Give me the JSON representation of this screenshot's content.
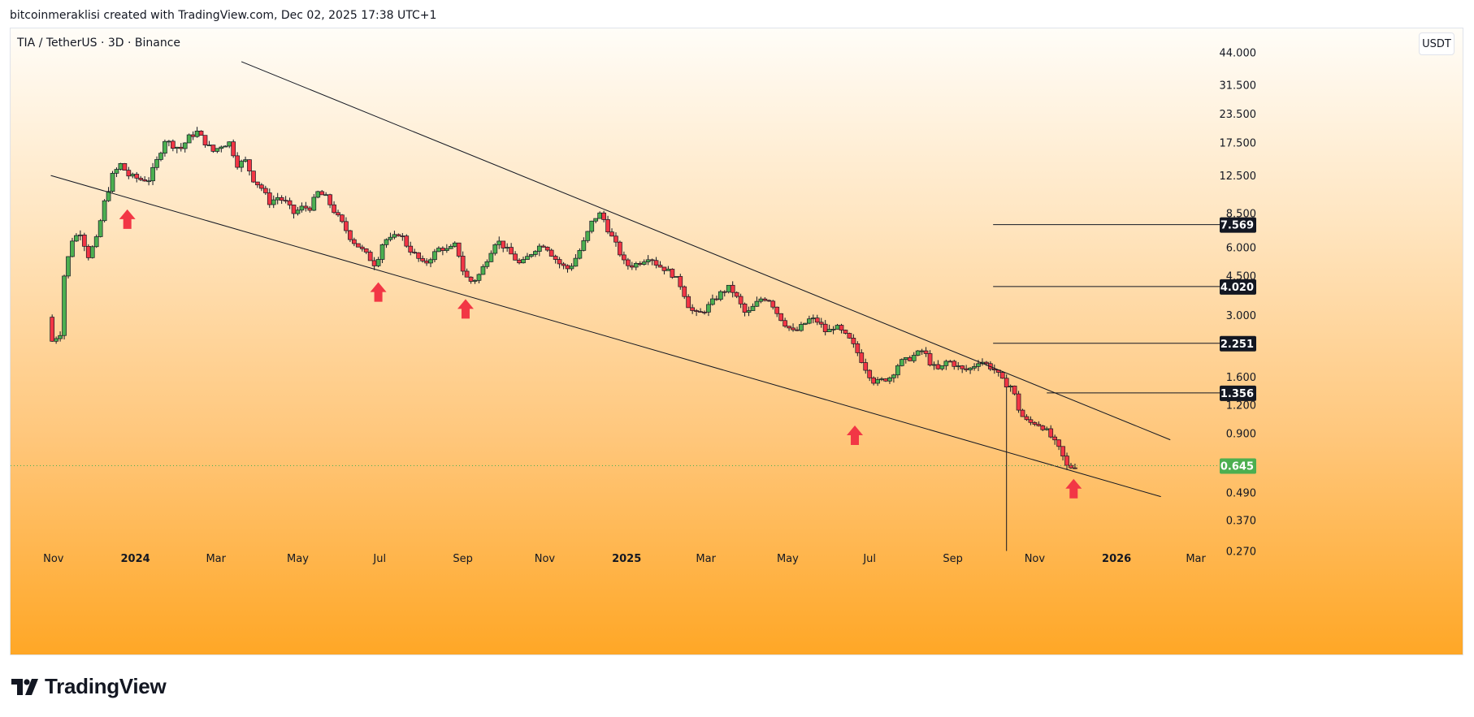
{
  "header": {
    "attribution": "bitcoinmeraklisi created with TradingView.com, Dec 02, 2025 17:38 UTC+1"
  },
  "chart": {
    "symbol_title": "TIA / TetherUS · 3D · Binance",
    "currency_button": "USDT"
  },
  "footer": {
    "brand": "TradingView"
  },
  "colors": {
    "up": "#26a69a",
    "down": "#ef5350",
    "up_body": "#4caf50",
    "down_body": "#f23645",
    "arrow": "#f23645",
    "last_price_bg": "#4caf50",
    "level_bg": "#131722",
    "gradient_top": "#fffdf8",
    "gradient_bottom": "#ffa726"
  },
  "chart_data": {
    "type": "candlestick",
    "title": "TIA / TetherUS · 3D · Binance",
    "scale": "log",
    "ylim": [
      0.26,
      50
    ],
    "xlim": [
      "2023-10-20",
      "2026-03-20"
    ],
    "y_ticks": [
      "44.000",
      "31.500",
      "23.500",
      "17.500",
      "12.500",
      "8.500",
      "6.000",
      "4.500",
      "3.000",
      "1.600",
      "1.200",
      "0.900",
      "0.490",
      "0.370",
      "0.270"
    ],
    "x_ticks": [
      {
        "label": "Nov",
        "date": "2023-11-01",
        "bold": false
      },
      {
        "label": "2024",
        "date": "2024-01-01",
        "bold": true
      },
      {
        "label": "Mar",
        "date": "2024-03-01",
        "bold": false
      },
      {
        "label": "May",
        "date": "2024-05-01",
        "bold": false
      },
      {
        "label": "Jul",
        "date": "2024-07-01",
        "bold": false
      },
      {
        "label": "Sep",
        "date": "2024-09-01",
        "bold": false
      },
      {
        "label": "Nov",
        "date": "2024-11-01",
        "bold": false
      },
      {
        "label": "2025",
        "date": "2025-01-01",
        "bold": true
      },
      {
        "label": "Mar",
        "date": "2025-03-01",
        "bold": false
      },
      {
        "label": "May",
        "date": "2025-05-01",
        "bold": false
      },
      {
        "label": "Jul",
        "date": "2025-07-01",
        "bold": false
      },
      {
        "label": "Sep",
        "date": "2025-09-01",
        "bold": false
      },
      {
        "label": "Nov",
        "date": "2025-11-01",
        "bold": false
      },
      {
        "label": "2026",
        "date": "2026-01-01",
        "bold": true
      },
      {
        "label": "Mar",
        "date": "2026-03-01",
        "bold": false
      }
    ],
    "price_path": [
      [
        "2023-10-31",
        2.8
      ],
      [
        "2023-11-03",
        2.3
      ],
      [
        "2023-11-09",
        2.5
      ],
      [
        "2023-11-12",
        4.5
      ],
      [
        "2023-11-18",
        6.5
      ],
      [
        "2023-11-24",
        7.0
      ],
      [
        "2023-11-30",
        5.5
      ],
      [
        "2023-12-06",
        6.5
      ],
      [
        "2023-12-12",
        9.5
      ],
      [
        "2023-12-18",
        12.5
      ],
      [
        "2023-12-24",
        14.0
      ],
      [
        "2023-12-30",
        12.5
      ],
      [
        "2024-01-08",
        12.0
      ],
      [
        "2024-01-14",
        12.0
      ],
      [
        "2024-01-20",
        14.5
      ],
      [
        "2024-01-26",
        18.0
      ],
      [
        "2024-02-01",
        17.0
      ],
      [
        "2024-02-07",
        16.5
      ],
      [
        "2024-02-13",
        18.5
      ],
      [
        "2024-02-19",
        19.5
      ],
      [
        "2024-02-25",
        17.5
      ],
      [
        "2024-03-02",
        16.0
      ],
      [
        "2024-03-08",
        17.0
      ],
      [
        "2024-03-14",
        17.5
      ],
      [
        "2024-03-20",
        14.0
      ],
      [
        "2024-03-26",
        14.5
      ],
      [
        "2024-04-01",
        12.0
      ],
      [
        "2024-04-07",
        11.0
      ],
      [
        "2024-04-13",
        9.5
      ],
      [
        "2024-04-19",
        10.0
      ],
      [
        "2024-04-25",
        9.5
      ],
      [
        "2024-05-01",
        8.5
      ],
      [
        "2024-05-07",
        9.0
      ],
      [
        "2024-05-13",
        9.0
      ],
      [
        "2024-05-19",
        10.5
      ],
      [
        "2024-05-25",
        10.0
      ],
      [
        "2024-06-01",
        8.5
      ],
      [
        "2024-06-07",
        7.5
      ],
      [
        "2024-06-13",
        6.5
      ],
      [
        "2024-06-19",
        6.0
      ],
      [
        "2024-06-25",
        5.5
      ],
      [
        "2024-07-01",
        5.0
      ],
      [
        "2024-07-07",
        6.5
      ],
      [
        "2024-07-13",
        6.5
      ],
      [
        "2024-07-19",
        7.0
      ],
      [
        "2024-07-25",
        6.0
      ],
      [
        "2024-07-31",
        5.5
      ],
      [
        "2024-08-06",
        5.0
      ],
      [
        "2024-08-12",
        5.5
      ],
      [
        "2024-08-18",
        6.0
      ],
      [
        "2024-08-24",
        5.8
      ],
      [
        "2024-08-30",
        6.2
      ],
      [
        "2024-09-05",
        4.5
      ],
      [
        "2024-09-11",
        4.2
      ],
      [
        "2024-09-17",
        4.6
      ],
      [
        "2024-09-23",
        5.5
      ],
      [
        "2024-09-29",
        6.5
      ],
      [
        "2024-10-05",
        6.0
      ],
      [
        "2024-10-11",
        5.5
      ],
      [
        "2024-10-17",
        5.0
      ],
      [
        "2024-10-23",
        5.5
      ],
      [
        "2024-10-29",
        6.0
      ],
      [
        "2024-11-04",
        6.2
      ],
      [
        "2024-11-10",
        5.5
      ],
      [
        "2024-11-16",
        5.0
      ],
      [
        "2024-11-22",
        4.8
      ],
      [
        "2024-11-28",
        5.5
      ],
      [
        "2024-12-04",
        6.5
      ],
      [
        "2024-12-10",
        8.0
      ],
      [
        "2024-12-16",
        8.5
      ],
      [
        "2024-12-22",
        7.0
      ],
      [
        "2024-12-28",
        6.0
      ],
      [
        "2025-01-03",
        5.0
      ],
      [
        "2025-01-09",
        5.0
      ],
      [
        "2025-01-15",
        5.2
      ],
      [
        "2025-01-21",
        5.5
      ],
      [
        "2025-01-27",
        5.0
      ],
      [
        "2025-02-02",
        4.8
      ],
      [
        "2025-02-08",
        4.5
      ],
      [
        "2025-02-14",
        4.0
      ],
      [
        "2025-02-20",
        3.2
      ],
      [
        "2025-02-26",
        3.0
      ],
      [
        "2025-03-04",
        3.2
      ],
      [
        "2025-03-10",
        3.5
      ],
      [
        "2025-03-16",
        3.8
      ],
      [
        "2025-03-22",
        4.0
      ],
      [
        "2025-03-28",
        3.5
      ],
      [
        "2025-04-03",
        3.0
      ],
      [
        "2025-04-09",
        3.3
      ],
      [
        "2025-04-15",
        3.6
      ],
      [
        "2025-04-21",
        3.5
      ],
      [
        "2025-04-27",
        3.0
      ],
      [
        "2025-05-03",
        2.7
      ],
      [
        "2025-05-09",
        2.5
      ],
      [
        "2025-05-15",
        2.7
      ],
      [
        "2025-05-21",
        2.9
      ],
      [
        "2025-05-27",
        2.8
      ],
      [
        "2025-06-02",
        2.5
      ],
      [
        "2025-06-08",
        2.7
      ],
      [
        "2025-06-14",
        2.5
      ],
      [
        "2025-06-20",
        2.3
      ],
      [
        "2025-06-26",
        2.0
      ],
      [
        "2025-07-02",
        1.7
      ],
      [
        "2025-07-08",
        1.5
      ],
      [
        "2025-07-14",
        1.55
      ],
      [
        "2025-07-20",
        1.6
      ],
      [
        "2025-07-26",
        1.85
      ],
      [
        "2025-08-01",
        1.9
      ],
      [
        "2025-08-07",
        2.0
      ],
      [
        "2025-08-13",
        2.1
      ],
      [
        "2025-08-19",
        1.8
      ],
      [
        "2025-08-25",
        1.7
      ],
      [
        "2025-08-31",
        1.9
      ],
      [
        "2025-09-06",
        1.8
      ],
      [
        "2025-09-12",
        1.7
      ],
      [
        "2025-09-18",
        1.75
      ],
      [
        "2025-09-24",
        1.9
      ],
      [
        "2025-09-30",
        1.8
      ],
      [
        "2025-10-06",
        1.7
      ],
      [
        "2025-10-12",
        1.5
      ],
      [
        "2025-10-18",
        1.45
      ],
      [
        "2025-10-24",
        1.1
      ],
      [
        "2025-10-30",
        1.0
      ],
      [
        "2025-11-05",
        1.0
      ],
      [
        "2025-11-11",
        0.95
      ],
      [
        "2025-11-17",
        0.85
      ],
      [
        "2025-11-23",
        0.75
      ],
      [
        "2025-11-29",
        0.62
      ],
      [
        "2025-12-02",
        0.645
      ]
    ],
    "notable_wicks": [
      {
        "date": "2025-10-12",
        "low": 0.27
      }
    ],
    "last_price": "0.645",
    "levels": [
      {
        "price": 7.569,
        "label": "7.569",
        "from_date": "2025-10-01"
      },
      {
        "price": 4.02,
        "label": "4.020",
        "from_date": "2025-10-01"
      },
      {
        "price": 2.251,
        "label": "2.251",
        "from_date": "2025-10-01"
      },
      {
        "price": 1.356,
        "label": "1.356",
        "from_date": "2025-11-10"
      }
    ],
    "trendlines": [
      {
        "name": "upper",
        "from": [
          "2024-03-20",
          40.0
        ],
        "to": [
          "2026-02-10",
          0.84
        ]
      },
      {
        "name": "lower",
        "from": [
          "2023-10-30",
          12.5
        ],
        "to": [
          "2026-02-03",
          0.47
        ]
      }
    ],
    "arrows": [
      {
        "date": "2023-12-26",
        "price": 8.0
      },
      {
        "date": "2024-06-30",
        "price": 3.8
      },
      {
        "date": "2024-09-03",
        "price": 3.2
      },
      {
        "date": "2025-06-20",
        "price": 0.88
      },
      {
        "date": "2025-11-30",
        "price": 0.51
      }
    ]
  }
}
